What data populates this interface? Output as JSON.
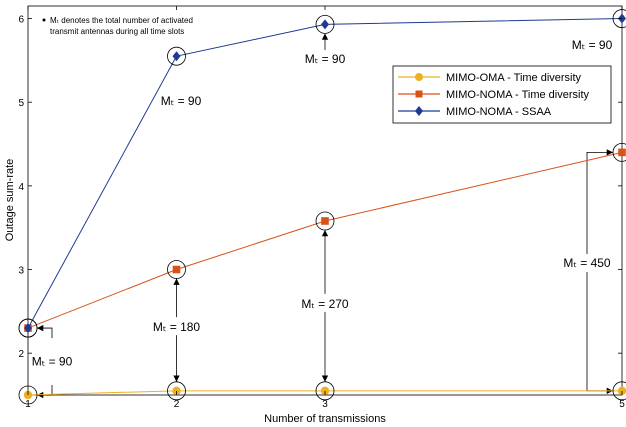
{
  "chart_data": {
    "type": "line",
    "xlabel": "Number of transmissions",
    "ylabel": "Outage sum-rate",
    "xlim": [
      1,
      5
    ],
    "ylim": [
      1.5,
      6.15
    ],
    "x_ticks": [
      1,
      2,
      3,
      5
    ],
    "y_ticks": [
      2,
      3,
      4,
      5,
      6
    ],
    "grid": false,
    "legend_position": "top-right",
    "note": {
      "line1": "Mₜ denotes the total number of activated",
      "line2": "transmit antennas during all time slots"
    },
    "series": [
      {
        "name": "MIMO-OMA - Time diversity",
        "color": "#EDB120",
        "marker": "circle",
        "x": [
          1,
          2,
          3,
          5
        ],
        "y": [
          1.5,
          1.55,
          1.55,
          1.55
        ]
      },
      {
        "name": "MIMO-NOMA - Time diversity",
        "color": "#D95319",
        "marker": "square",
        "x": [
          1,
          2,
          3,
          5
        ],
        "y": [
          2.3,
          3.0,
          3.58,
          4.4
        ]
      },
      {
        "name": "MIMO-NOMA - SSAA",
        "color": "#1F3A93",
        "marker": "diamond",
        "x": [
          1,
          2,
          3,
          5
        ],
        "y": [
          2.3,
          5.55,
          5.93,
          6.0
        ]
      }
    ],
    "annotations": [
      {
        "x": 1,
        "text": "Mₜ = 90"
      },
      {
        "x": 2,
        "text": "Mₜ = 180"
      },
      {
        "x": 3,
        "text": "Mₜ = 270"
      },
      {
        "x": 5,
        "text": "Mₜ = 450"
      },
      {
        "x": 2,
        "text": "Mₜ = 90"
      },
      {
        "x": 3,
        "text": "Mₜ = 90"
      },
      {
        "x": 5,
        "text": "Mₜ = 90"
      }
    ]
  }
}
